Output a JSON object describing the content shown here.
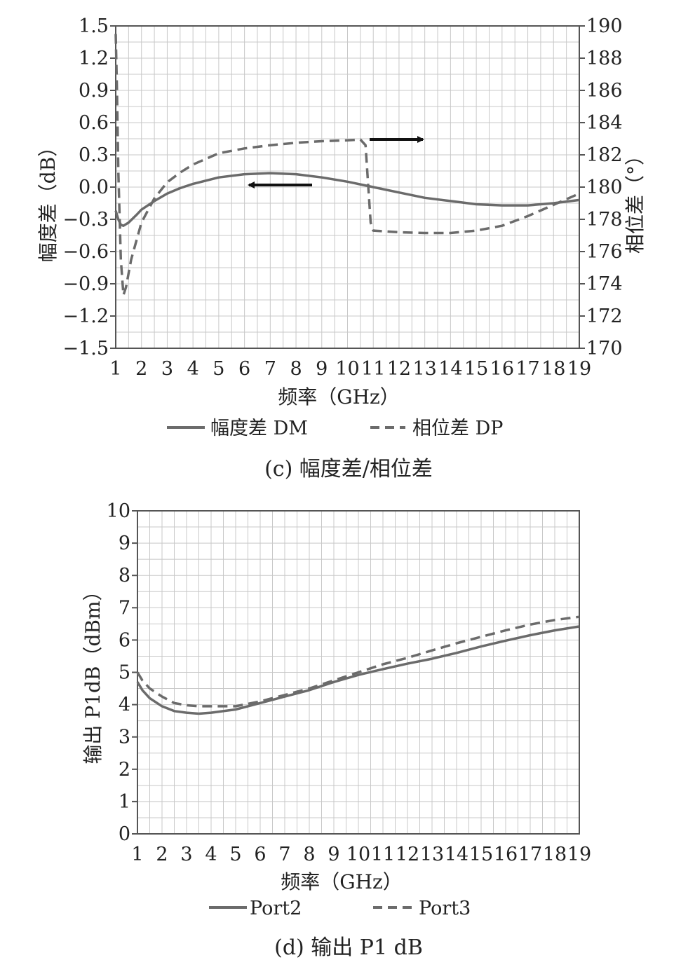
{
  "chart_data": [
    {
      "type": "line",
      "caption": "(c) 幅度差/相位差",
      "xlabel": "频率（GHz）",
      "ylabel_left": "幅度差（dB）",
      "ylabel_right": "相位差（°）",
      "x_ticks": [
        "1",
        "2",
        "3",
        "4",
        "5",
        "6",
        "7",
        "8",
        "9",
        "10",
        "11",
        "12",
        "13",
        "14",
        "15",
        "16",
        "17",
        "18",
        "19"
      ],
      "y_left_ticks": [
        "1.5",
        "1.2",
        "0.9",
        "0.6",
        "0.3",
        "0.0",
        "−0.3",
        "−0.6",
        "−0.9",
        "−1.2",
        "−1.5"
      ],
      "y_right_ticks": [
        "190",
        "188",
        "186",
        "184",
        "182",
        "180",
        "178",
        "176",
        "174",
        "172",
        "170"
      ],
      "xlim": [
        1,
        19
      ],
      "ylim_left": [
        -1.5,
        1.5
      ],
      "ylim_right": [
        170,
        190
      ],
      "grid": true,
      "legend_position": "bottom",
      "series": [
        {
          "name": "幅度差 DM",
          "axis": "left",
          "style": "solid",
          "color": "#6b6b6b",
          "x": [
            1.0,
            1.1,
            1.2,
            1.3,
            1.5,
            1.8,
            2.0,
            2.5,
            3.0,
            3.5,
            4.0,
            5.0,
            6.0,
            7.0,
            8.0,
            9.0,
            10.0,
            11.0,
            12.0,
            13.0,
            14.0,
            15.0,
            16.0,
            16.5,
            17.0,
            18.0,
            19.0
          ],
          "y": [
            -0.22,
            -0.3,
            -0.35,
            -0.36,
            -0.33,
            -0.26,
            -0.21,
            -0.13,
            -0.06,
            -0.01,
            0.03,
            0.09,
            0.12,
            0.13,
            0.12,
            0.09,
            0.05,
            0.0,
            -0.05,
            -0.1,
            -0.13,
            -0.16,
            -0.17,
            -0.17,
            -0.17,
            -0.15,
            -0.12
          ]
        },
        {
          "name": "相位差 DP",
          "axis": "right",
          "style": "dashed",
          "color": "#6b6b6b",
          "x": [
            1.0,
            1.05,
            1.1,
            1.2,
            1.3,
            1.4,
            1.6,
            2.0,
            2.5,
            3.0,
            3.5,
            4.0,
            5.0,
            6.0,
            7.0,
            8.0,
            9.0,
            10.0,
            10.5,
            10.7,
            10.9,
            11.0,
            12.0,
            13.0,
            14.0,
            15.0,
            16.0,
            17.0,
            18.0,
            19.0
          ],
          "y": [
            189.5,
            186.0,
            181.0,
            175.5,
            173.3,
            173.8,
            175.5,
            177.8,
            179.3,
            180.3,
            180.9,
            181.4,
            182.1,
            182.4,
            182.6,
            182.75,
            182.85,
            182.9,
            182.95,
            182.6,
            177.8,
            177.3,
            177.2,
            177.15,
            177.15,
            177.3,
            177.6,
            178.2,
            178.9,
            179.6
          ]
        }
      ],
      "annotations": [
        "left-arrow-to-DM",
        "right-arrow-to-DP"
      ]
    },
    {
      "type": "line",
      "caption": "(d) 输出 P1 dB",
      "xlabel": "频率（GHz）",
      "ylabel": "输出 P1dB（dBm）",
      "x_ticks": [
        "1",
        "2",
        "3",
        "4",
        "5",
        "6",
        "7",
        "8",
        "9",
        "10",
        "11",
        "12",
        "13",
        "14",
        "15",
        "16",
        "17",
        "18",
        "19"
      ],
      "y_ticks": [
        "10",
        "9",
        "8",
        "7",
        "6",
        "5",
        "4",
        "3",
        "2",
        "1",
        "0"
      ],
      "xlim": [
        1,
        19
      ],
      "ylim": [
        0,
        10
      ],
      "grid": true,
      "legend_position": "bottom",
      "series": [
        {
          "name": "Port2",
          "style": "solid",
          "color": "#6b6b6b",
          "x": [
            1.0,
            1.2,
            1.5,
            2.0,
            2.5,
            3.0,
            3.5,
            4.0,
            5.0,
            6.0,
            7.0,
            8.0,
            9.0,
            10.0,
            11.0,
            12.0,
            13.0,
            14.0,
            15.0,
            16.0,
            17.0,
            18.0,
            19.0
          ],
          "y": [
            4.7,
            4.45,
            4.2,
            3.95,
            3.8,
            3.75,
            3.72,
            3.75,
            3.85,
            4.05,
            4.25,
            4.45,
            4.7,
            4.92,
            5.1,
            5.27,
            5.42,
            5.6,
            5.8,
            5.98,
            6.15,
            6.3,
            6.42
          ]
        },
        {
          "name": "Port3",
          "style": "dashed",
          "color": "#6b6b6b",
          "x": [
            1.0,
            1.2,
            1.5,
            2.0,
            2.5,
            3.0,
            3.5,
            4.0,
            5.0,
            6.0,
            7.0,
            8.0,
            9.0,
            10.0,
            11.0,
            12.0,
            13.0,
            14.0,
            15.0,
            16.0,
            17.0,
            18.0,
            19.0
          ],
          "y": [
            5.0,
            4.75,
            4.5,
            4.25,
            4.05,
            3.98,
            3.95,
            3.95,
            3.95,
            4.1,
            4.3,
            4.5,
            4.75,
            5.0,
            5.25,
            5.45,
            5.68,
            5.9,
            6.1,
            6.3,
            6.48,
            6.62,
            6.72
          ]
        }
      ]
    }
  ]
}
